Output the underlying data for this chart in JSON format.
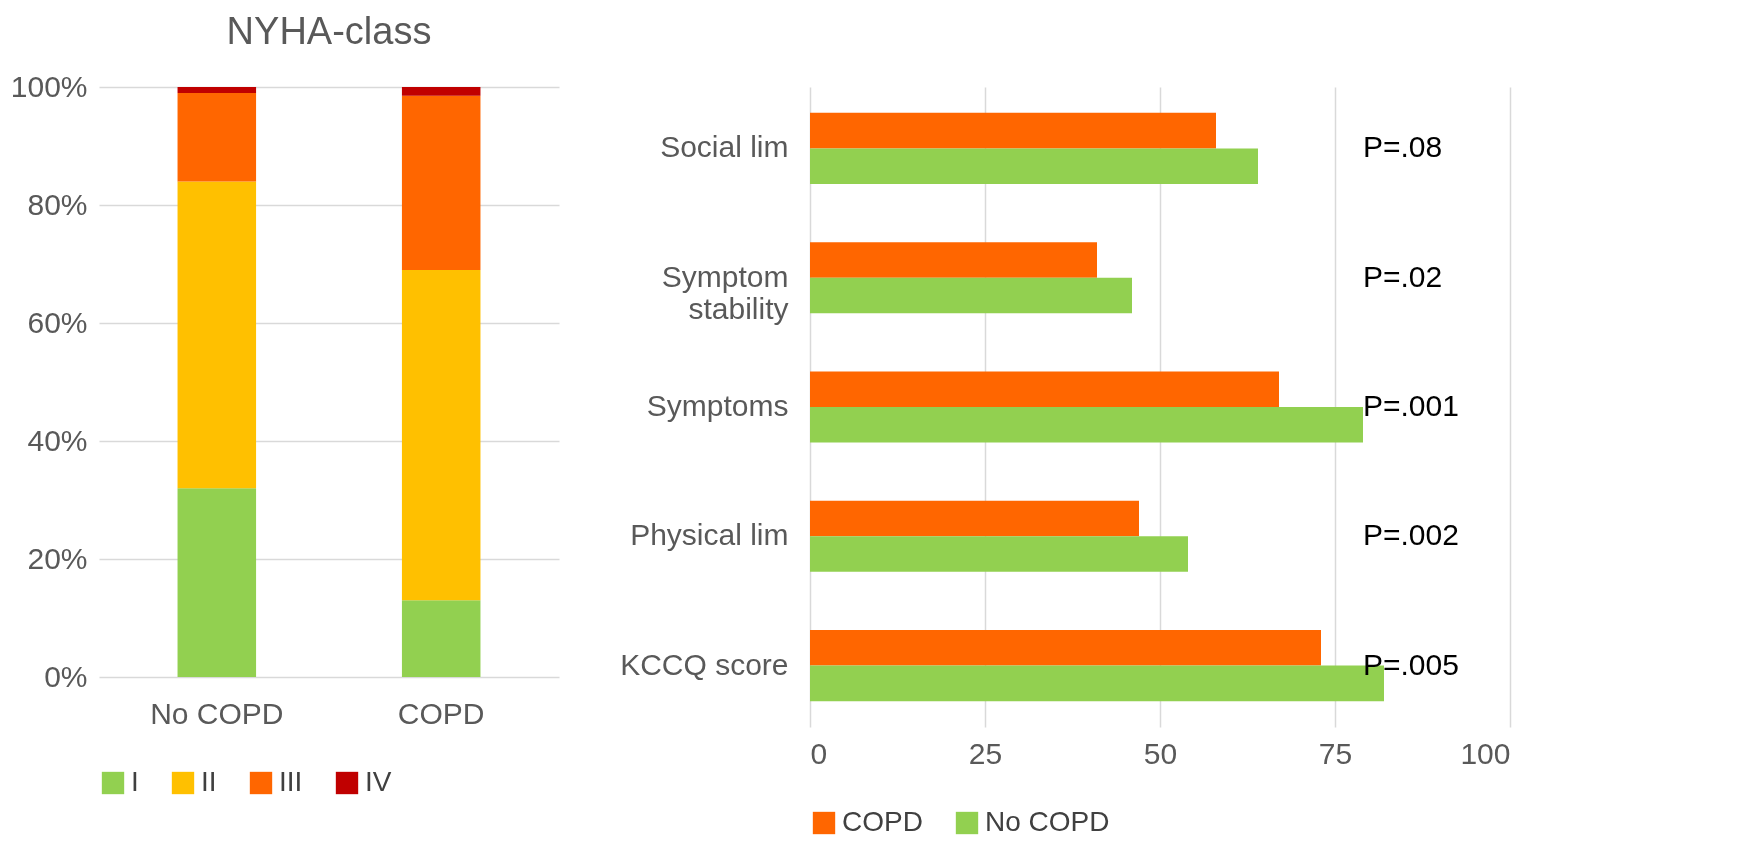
{
  "chart_data": [
    {
      "type": "bar",
      "title": "NYHA-class",
      "stacked": true,
      "categories": [
        "No COPD",
        "COPD"
      ],
      "series": [
        {
          "name": "I",
          "color": "#92d050",
          "values": [
            32,
            13
          ]
        },
        {
          "name": "II",
          "color": "#ffc000",
          "values": [
            52,
            56
          ]
        },
        {
          "name": "III",
          "color": "#ff6600",
          "values": [
            15,
            29.5
          ]
        },
        {
          "name": "IV",
          "color": "#c00000",
          "values": [
            1,
            1.5
          ]
        }
      ],
      "ylim": [
        0,
        100
      ],
      "yticks": [
        {
          "value": 0,
          "label": "0%"
        },
        {
          "value": 20,
          "label": "20%"
        },
        {
          "value": 40,
          "label": "40%"
        },
        {
          "value": 60,
          "label": "60%"
        },
        {
          "value": 80,
          "label": "80%"
        },
        {
          "value": 100,
          "label": "100%"
        }
      ],
      "grid": "y",
      "legend": "bottom"
    },
    {
      "type": "bar",
      "orientation": "horizontal",
      "categories": [
        "Social lim",
        "Symptom stability",
        "Symptoms",
        "Physical lim",
        "KCCQ score"
      ],
      "series": [
        {
          "name": "COPD",
          "color": "#ff6600",
          "values": [
            58,
            41,
            67,
            47,
            73
          ]
        },
        {
          "name": "No COPD",
          "color": "#92d050",
          "values": [
            64,
            46,
            79,
            54,
            82
          ]
        }
      ],
      "xlim": [
        0,
        100
      ],
      "xticks": [
        0,
        25,
        50,
        75,
        100
      ],
      "grid": "x",
      "legend": "bottom",
      "annotations": [
        "P=.08",
        "P=.02",
        "P=.001",
        "P=.002",
        "P=.005"
      ]
    }
  ]
}
